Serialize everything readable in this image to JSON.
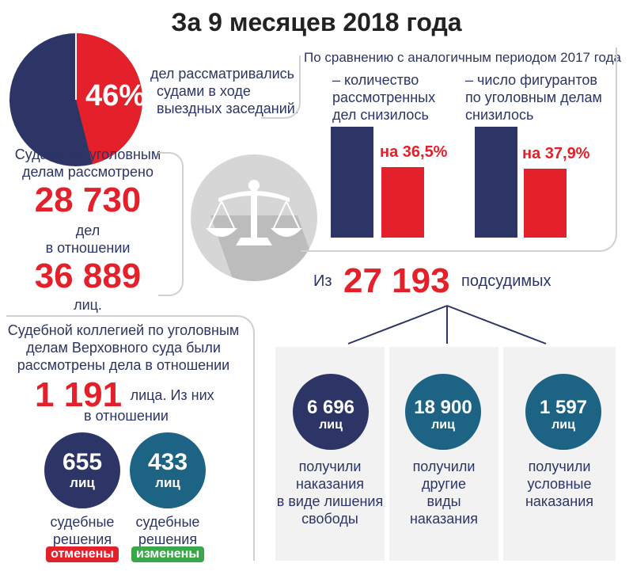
{
  "title": "За 9 месяцев 2018 года",
  "colors": {
    "navy": "#2c3566",
    "red": "#e4202a",
    "teal": "#1c6384",
    "green": "#3aa74a",
    "gray": "#cfcfcf"
  },
  "pie": {
    "percent_value": 46,
    "percent_label": "46%",
    "text": [
      "дел рассматривались",
      "судами в ходе",
      "выездных заседаний."
    ]
  },
  "criminal": {
    "line1": "Судами по уголовным",
    "line2": "делам рассмотрено",
    "cases_number": "28 730",
    "cases_unit": "дел",
    "relation": "в отношении",
    "persons_number": "36 889",
    "persons_unit": "лиц."
  },
  "comparison": {
    "heading": "По сравнению с аналогичным периодом 2017 года",
    "left": {
      "text": [
        "– количество",
        "рассмотренных",
        "дел снизилось"
      ],
      "value": "на 36,5%",
      "reduction_percent": 36.5
    },
    "right": {
      "text": [
        "– число фигурантов",
        "по уголовным делам",
        "снизилось"
      ],
      "value": "на 37,9%",
      "reduction_percent": 37.9
    }
  },
  "defendants": {
    "prefix": "Из",
    "number": "27 193",
    "suffix": "подсудимых",
    "cards": [
      {
        "number": "6 696",
        "unit": "лиц",
        "text": [
          "получили",
          "наказания",
          "в виде лишения",
          "свободы"
        ],
        "color": "#2c3566"
      },
      {
        "number": "18 900",
        "unit": "лиц",
        "text": [
          "получили",
          "другие",
          "виды",
          "наказания"
        ],
        "color": "#1c6384"
      },
      {
        "number": "1 597",
        "unit": "лиц",
        "text": [
          "получили",
          "условные",
          "наказания"
        ],
        "color": "#1c6384"
      }
    ]
  },
  "supreme": {
    "lines": [
      "Судебной коллегией по уголовным",
      "делам Верховного суда были",
      "рассмотрены дела в отношении"
    ],
    "number": "1 191",
    "after_number": "лица. Из них",
    "relation": "в отношении",
    "cancelled": {
      "number": "655",
      "unit": "лиц",
      "text": [
        "судебные",
        "решения"
      ],
      "badge": "отменены"
    },
    "changed": {
      "number": "433",
      "unit": "лиц",
      "text": [
        "судебные",
        "решения"
      ],
      "badge": "изменены"
    }
  },
  "icons": {
    "central": "scales-icon"
  }
}
